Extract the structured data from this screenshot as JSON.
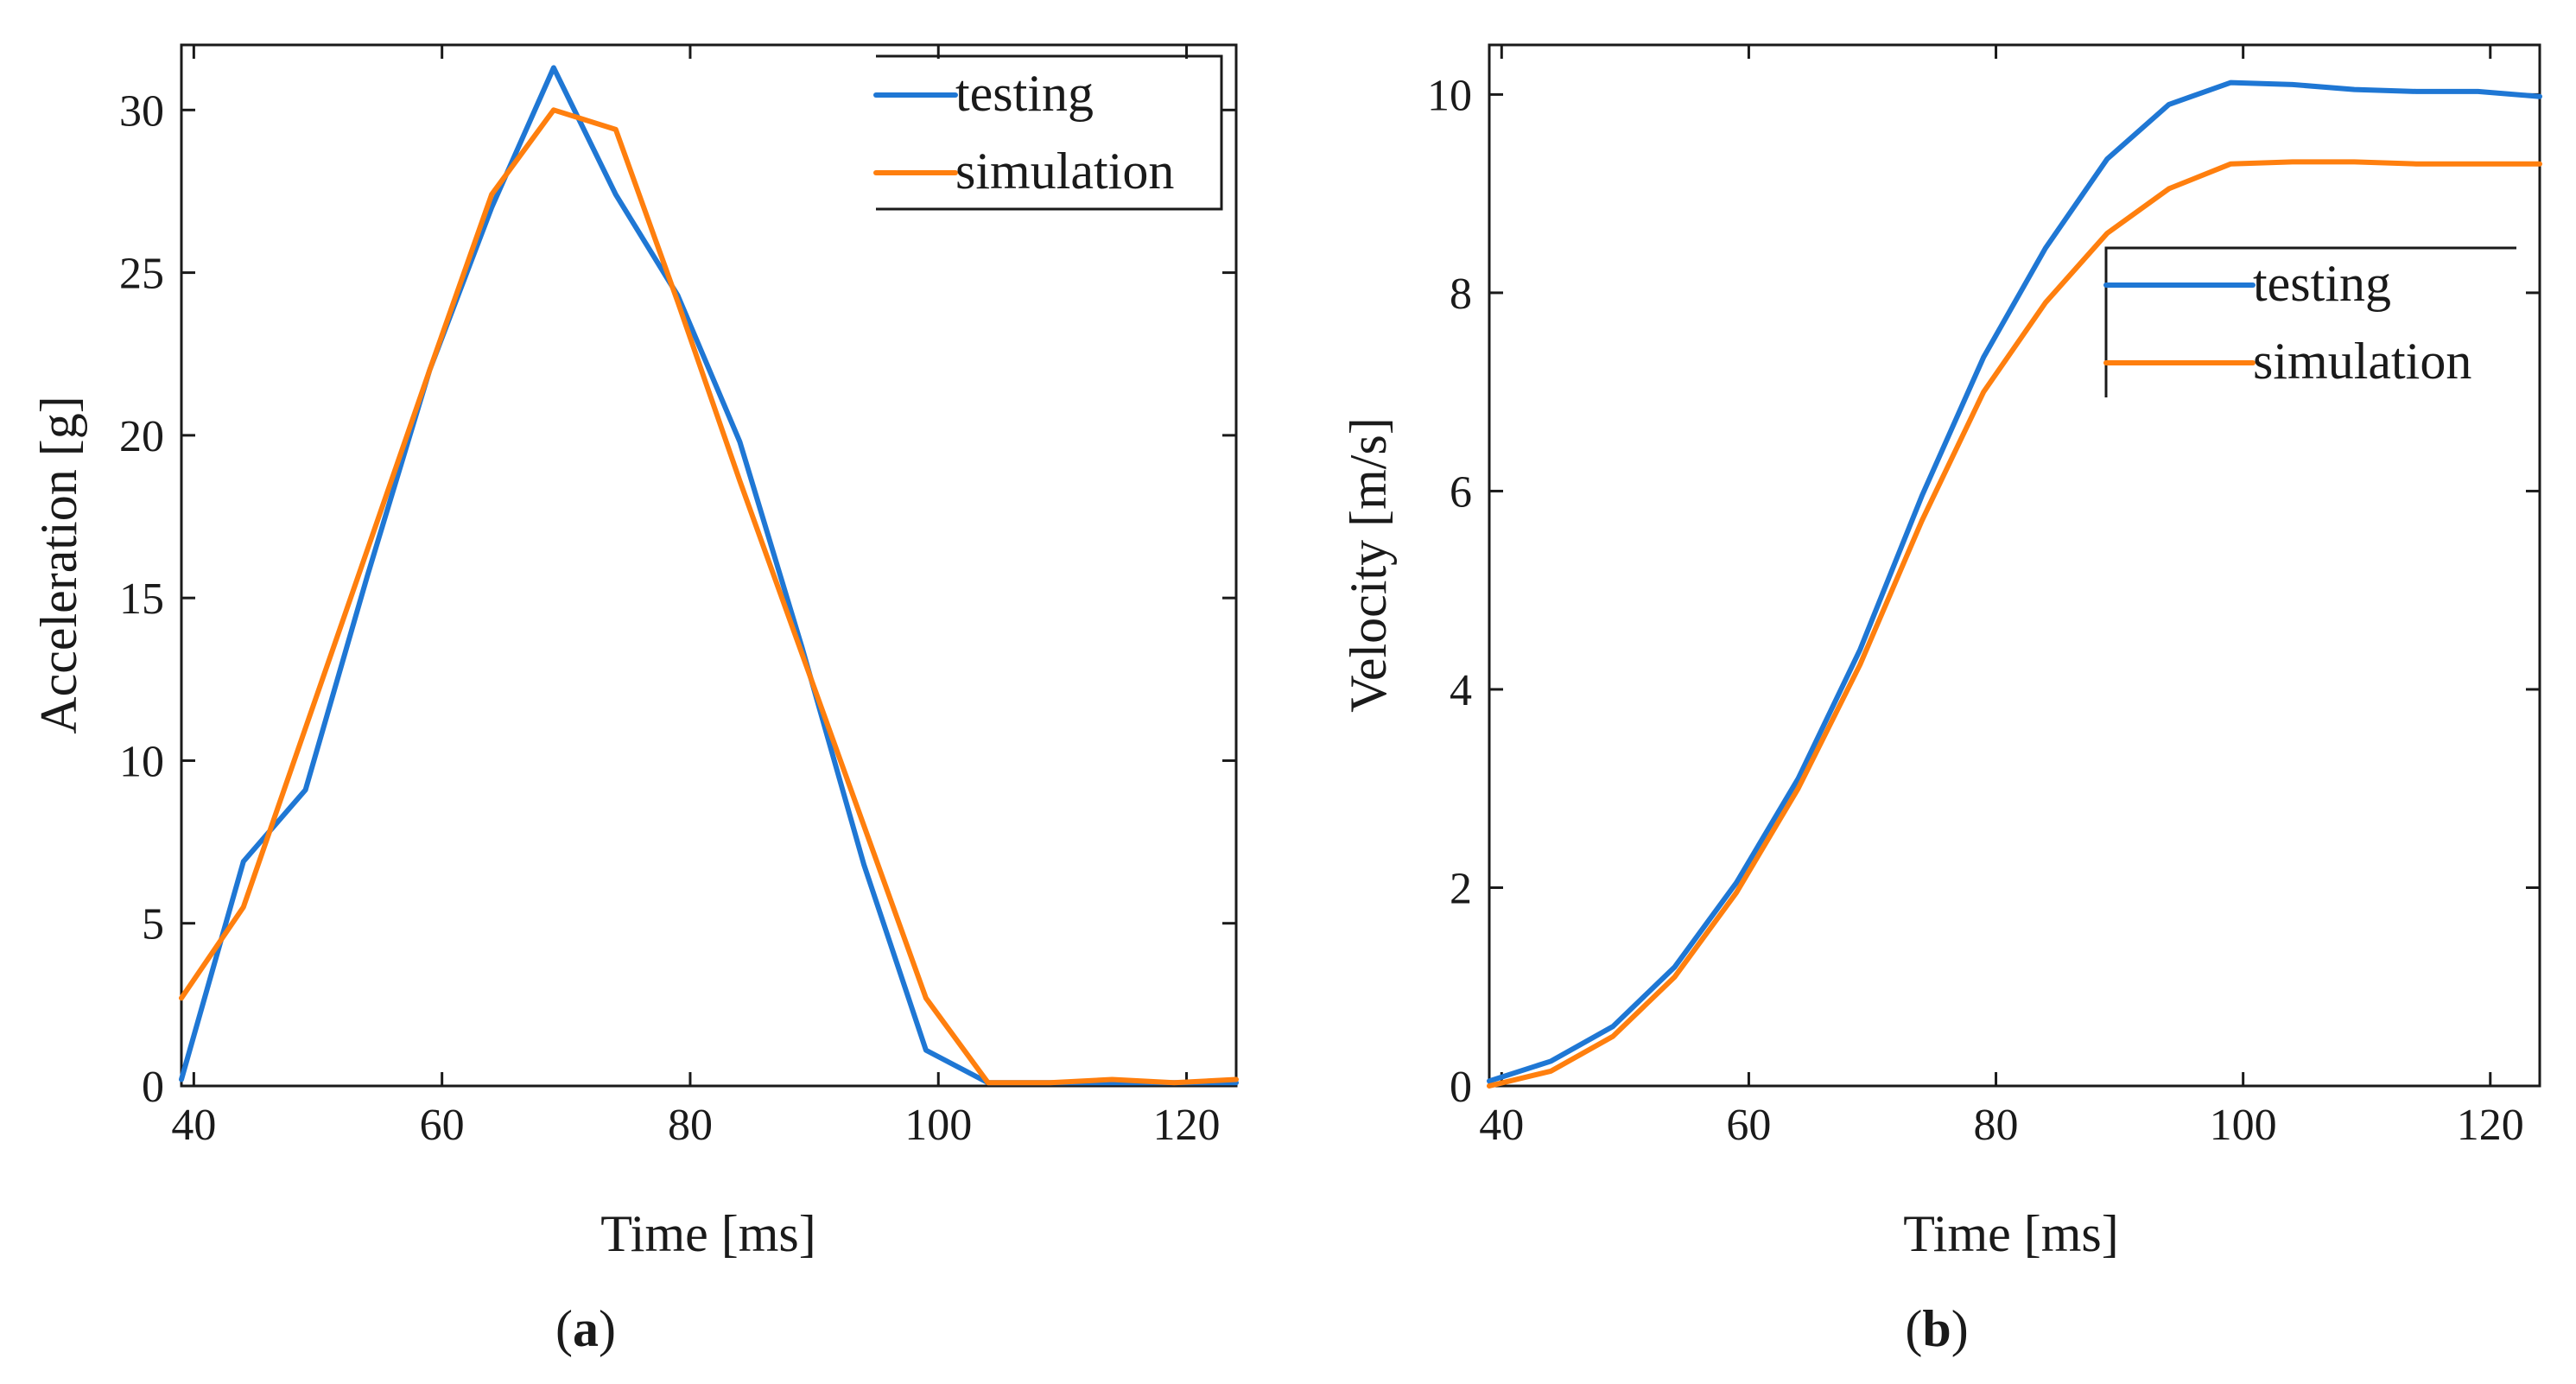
{
  "figure": {
    "panels": [
      {
        "label_open": "(",
        "label_letter": "a",
        "label_close": ")"
      },
      {
        "label_open": "(",
        "label_letter": "b",
        "label_close": ")"
      }
    ]
  },
  "chart_data": [
    {
      "type": "line",
      "xlabel": "Time [ms]",
      "ylabel": "Acceleration [g]",
      "xlim": [
        39,
        124
      ],
      "ylim": [
        0,
        32
      ],
      "xticks": [
        40,
        60,
        80,
        100,
        120
      ],
      "yticks": [
        0,
        5,
        10,
        15,
        20,
        25,
        30
      ],
      "legend_position": "top-right",
      "series": [
        {
          "name": "testing",
          "color": "#1f77d4",
          "x": [
            39,
            44,
            49,
            54,
            59,
            64,
            69,
            74,
            79,
            84,
            89,
            94,
            99,
            104,
            109,
            114,
            119,
            124
          ],
          "y": [
            0.2,
            6.9,
            9.1,
            15.7,
            22.0,
            27.0,
            31.3,
            27.4,
            24.3,
            19.8,
            13.5,
            6.8,
            1.1,
            0.1,
            0.1,
            0.1,
            0.1,
            0.1
          ]
        },
        {
          "name": "simulation",
          "color": "#ff7f0e",
          "x": [
            39,
            44,
            49,
            54,
            59,
            64,
            69,
            74,
            79,
            84,
            89,
            94,
            99,
            104,
            109,
            114,
            119,
            124
          ],
          "y": [
            2.7,
            5.5,
            11.0,
            16.5,
            22.0,
            27.4,
            30.0,
            29.4,
            24.1,
            18.6,
            13.3,
            8.0,
            2.7,
            0.1,
            0.1,
            0.2,
            0.1,
            0.2
          ]
        }
      ]
    },
    {
      "type": "line",
      "xlabel": "Time [ms]",
      "ylabel": "Velocity [m/s]",
      "xlim": [
        39,
        124
      ],
      "ylim": [
        0,
        10.5
      ],
      "xticks": [
        40,
        60,
        80,
        100,
        120
      ],
      "yticks": [
        0,
        2,
        4,
        6,
        8,
        10
      ],
      "legend_position": "center-right",
      "series": [
        {
          "name": "testing",
          "color": "#1f77d4",
          "x": [
            39,
            44,
            49,
            54,
            59,
            64,
            69,
            74,
            79,
            84,
            89,
            94,
            99,
            104,
            109,
            114,
            119,
            124
          ],
          "y": [
            0.05,
            0.25,
            0.6,
            1.2,
            2.05,
            3.1,
            4.4,
            5.95,
            7.35,
            8.45,
            9.35,
            9.9,
            10.12,
            10.1,
            10.05,
            10.03,
            10.03,
            9.98
          ]
        },
        {
          "name": "simulation",
          "color": "#ff7f0e",
          "x": [
            39,
            44,
            49,
            54,
            59,
            64,
            69,
            74,
            79,
            84,
            89,
            94,
            99,
            104,
            109,
            114,
            119,
            124
          ],
          "y": [
            0.0,
            0.15,
            0.5,
            1.1,
            1.95,
            3.0,
            4.25,
            5.7,
            7.0,
            7.9,
            8.6,
            9.05,
            9.3,
            9.32,
            9.32,
            9.3,
            9.3,
            9.3
          ]
        }
      ]
    }
  ]
}
